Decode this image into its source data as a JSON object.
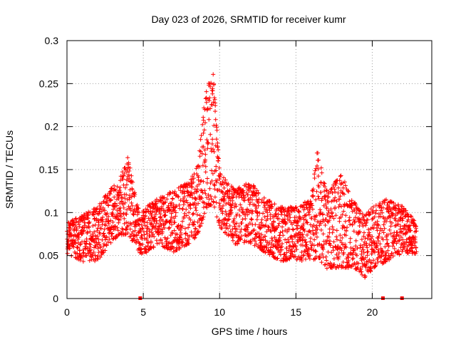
{
  "chart_data": {
    "type": "scatter",
    "title": "Day 023 of 2026, SRMTID for receiver kumr",
    "xlabel": "GPS time / hours",
    "ylabel": "SRMTID / TECUs",
    "xlim": [
      0,
      23.9
    ],
    "ylim": [
      0,
      0.3
    ],
    "xticks": [
      0,
      5,
      10,
      15,
      20
    ],
    "xtick_labels": [
      "0",
      "5",
      "10",
      "15",
      "20"
    ],
    "yticks": [
      0,
      0.05,
      0.1,
      0.15,
      0.2,
      0.25,
      0.3
    ],
    "ytick_labels": [
      "0",
      "0.05",
      "0.1",
      "0.15",
      "0.2",
      "0.25",
      "0.3"
    ],
    "grid": true,
    "marker": "plus",
    "color": "#ff0000",
    "gap_markers_x": [
      4.8,
      20.7,
      21.95
    ],
    "envelope": {
      "x": [
        0.0,
        1.0,
        2.0,
        2.8,
        3.4,
        4.0,
        4.4,
        4.8,
        5.2,
        6.0,
        7.0,
        8.0,
        8.6,
        9.0,
        9.3,
        9.6,
        10.0,
        11.0,
        12.0,
        13.0,
        14.0,
        15.0,
        16.0,
        16.4,
        17.0,
        18.0,
        19.0,
        19.5,
        20.0,
        21.0,
        22.0,
        22.9
      ],
      "low": [
        0.05,
        0.04,
        0.04,
        0.06,
        0.07,
        0.07,
        0.06,
        0.05,
        0.05,
        0.06,
        0.05,
        0.06,
        0.07,
        0.09,
        0.1,
        0.1,
        0.08,
        0.06,
        0.06,
        0.05,
        0.04,
        0.04,
        0.04,
        0.04,
        0.03,
        0.03,
        0.03,
        0.02,
        0.03,
        0.04,
        0.05,
        0.05
      ],
      "high": [
        0.09,
        0.1,
        0.11,
        0.13,
        0.14,
        0.17,
        0.13,
        0.1,
        0.11,
        0.12,
        0.13,
        0.14,
        0.16,
        0.24,
        0.26,
        0.27,
        0.15,
        0.13,
        0.14,
        0.12,
        0.11,
        0.11,
        0.12,
        0.18,
        0.13,
        0.15,
        0.11,
        0.1,
        0.11,
        0.12,
        0.11,
        0.09
      ]
    },
    "points_per_hour": 120
  }
}
